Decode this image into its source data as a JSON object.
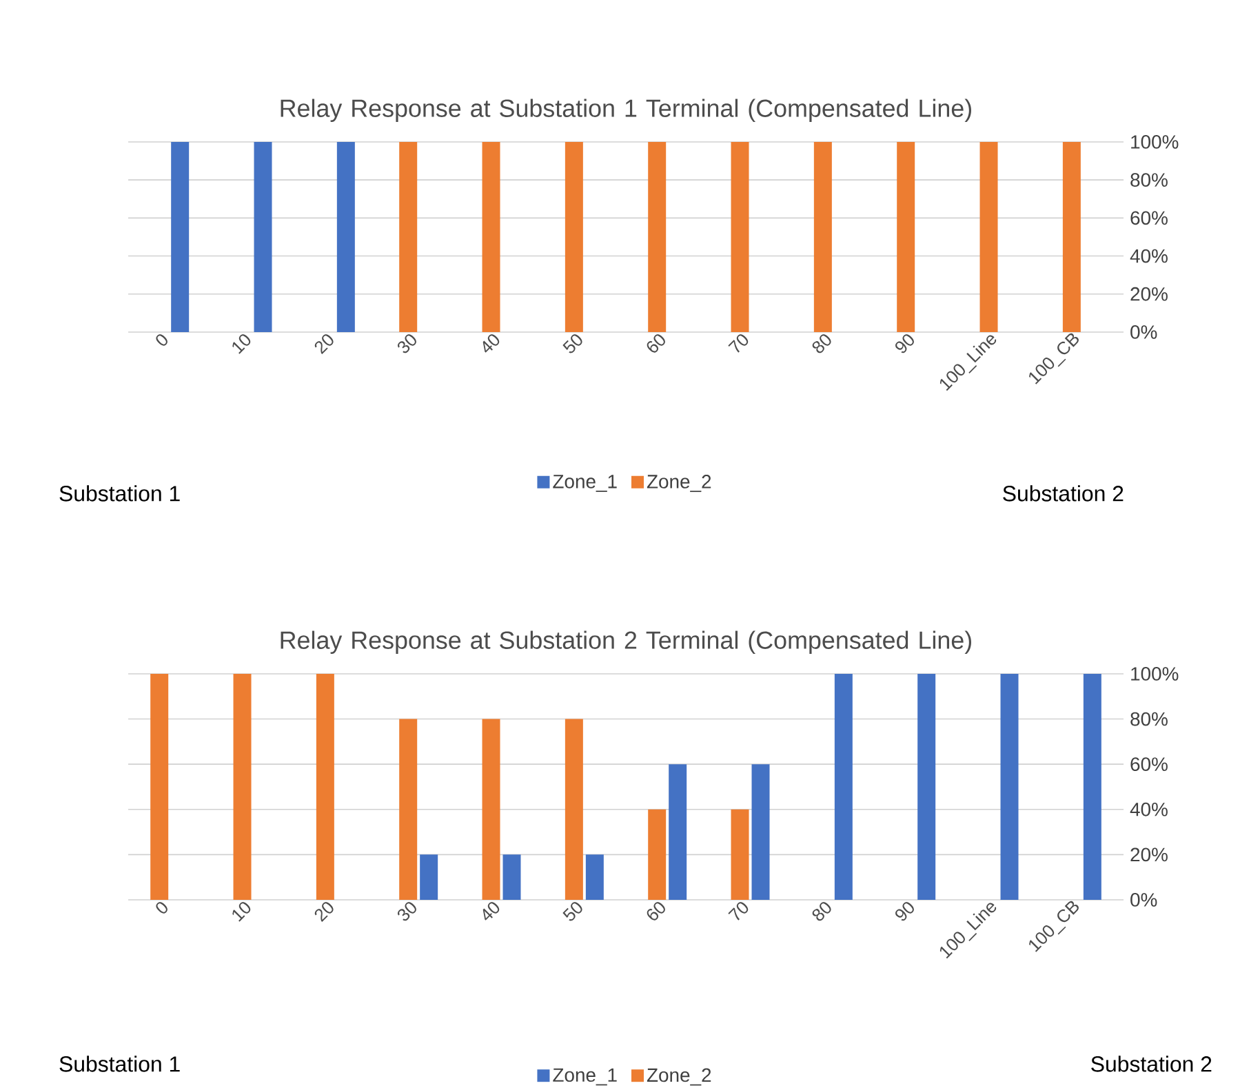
{
  "chart_data": [
    {
      "type": "bar",
      "title": "Relay Response at Substation 1 Terminal (Compensated Line)",
      "categories": [
        "0",
        "10",
        "20",
        "30",
        "40",
        "50",
        "60",
        "70",
        "80",
        "90",
        "100_Line",
        "100_CB"
      ],
      "series": [
        {
          "name": "Zone_1",
          "color": "#4472c4",
          "values": [
            100,
            100,
            100,
            0,
            0,
            0,
            0,
            0,
            0,
            0,
            0,
            0
          ]
        },
        {
          "name": "Zone_2",
          "color": "#ed7d31",
          "values": [
            0,
            0,
            0,
            100,
            100,
            100,
            100,
            100,
            100,
            100,
            100,
            100
          ]
        }
      ],
      "ylim": [
        0,
        100
      ],
      "yticks": [
        {
          "value": 0,
          "label": "0%"
        },
        {
          "value": 20,
          "label": "20%"
        },
        {
          "value": 40,
          "label": "40%"
        },
        {
          "value": 60,
          "label": "60%"
        },
        {
          "value": 80,
          "label": "80%"
        },
        {
          "value": 100,
          "label": "100%"
        }
      ],
      "grid": "y",
      "legend": "bottom",
      "annotations": [
        "Substation 1",
        "Substation 2"
      ]
    },
    {
      "type": "bar",
      "title": "Relay Response at Substation 2 Terminal (Compensated Line)",
      "categories": [
        "0",
        "10",
        "20",
        "30",
        "40",
        "50",
        "60",
        "70",
        "80",
        "90",
        "100_Line",
        "100_CB"
      ],
      "series": [
        {
          "name": "Zone_1",
          "color": "#4472c4",
          "values": [
            0,
            0,
            0,
            20,
            20,
            20,
            60,
            60,
            100,
            100,
            100,
            100
          ]
        },
        {
          "name": "Zone_2",
          "color": "#ed7d31",
          "values": [
            100,
            100,
            100,
            80,
            80,
            80,
            40,
            40,
            0,
            0,
            0,
            0
          ]
        }
      ],
      "ylim": [
        0,
        100
      ],
      "yticks": [
        {
          "value": 0,
          "label": "0%"
        },
        {
          "value": 20,
          "label": "20%"
        },
        {
          "value": 40,
          "label": "40%"
        },
        {
          "value": 60,
          "label": "60%"
        },
        {
          "value": 80,
          "label": "80%"
        },
        {
          "value": 100,
          "label": "100%"
        }
      ],
      "grid": "y",
      "legend": "bottom",
      "annotations": [
        "Substation 1",
        "Substation 2"
      ]
    }
  ]
}
